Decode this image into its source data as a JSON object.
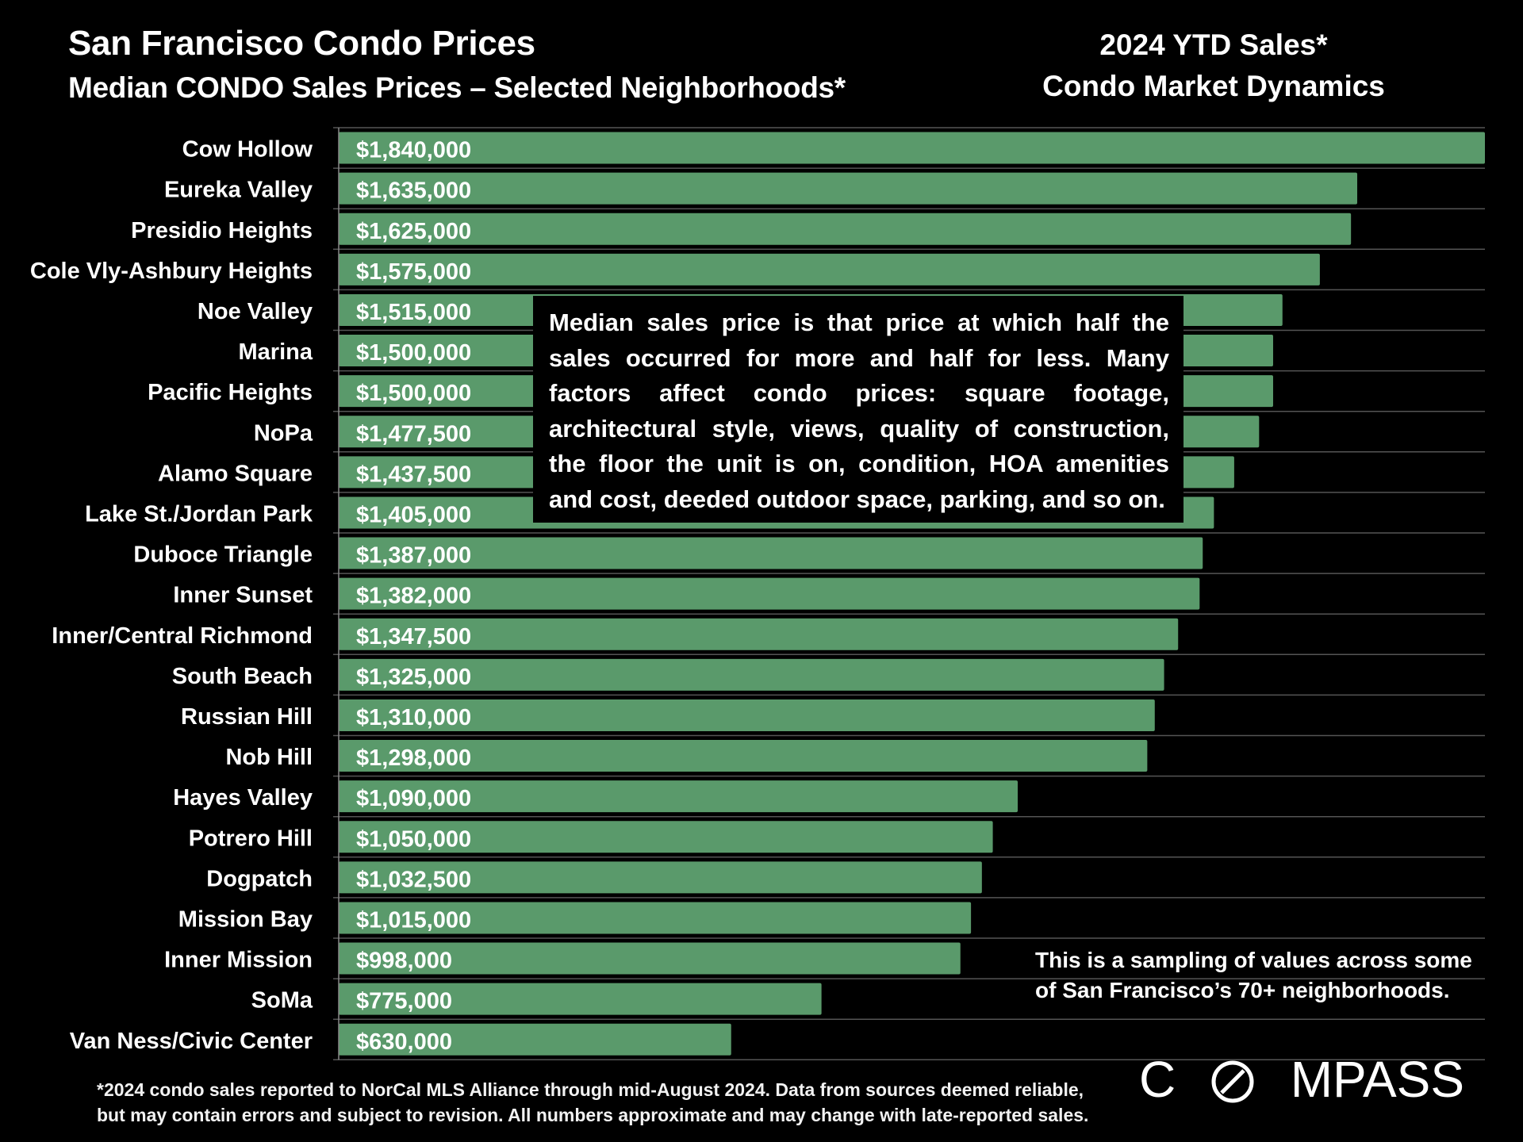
{
  "header": {
    "title": "San Francisco Condo Prices",
    "subtitle": "Median CONDO Sales Prices – Selected Neighborhoods*",
    "right_line1": "2024 YTD Sales*",
    "right_line2": "Condo Market Dynamics"
  },
  "annotation": "Median sales price is that price at which half the sales occurred for more and half for less. Many factors affect condo prices: square footage, architectural style, views, quality of construction, the floor the unit is on, condition, HOA amenities and cost, deeded outdoor space, parking, and so on.",
  "sampling_note": "This is a sampling of values across some of San Francisco’s 70+ neighborhoods.",
  "footnote_line1": "*2024 condo sales reported to NorCal MLS Alliance through mid-August 2024. Data from sources deemed reliable,",
  "footnote_line2": "but may contain errors and subject to revision. All numbers approximate and may change with late-reported sales.",
  "logo": {
    "before_o": "C",
    "after_o": "MPASS",
    "o_icon": "compass-o-icon"
  },
  "colors": {
    "bar": "#5a9a6b",
    "background": "#000000",
    "text": "#ffffff",
    "gridline": "#555555"
  },
  "chart_data": {
    "type": "bar",
    "orientation": "horizontal",
    "title": "San Francisco Condo Prices",
    "subtitle": "Median CONDO Sales Prices – Selected Neighborhoods*",
    "xlim": [
      0,
      1840000
    ],
    "categories": [
      "Cow Hollow",
      "Eureka Valley",
      "Presidio Heights",
      "Cole Vly-Ashbury Heights",
      "Noe Valley",
      "Marina",
      "Pacific Heights",
      "NoPa",
      "Alamo Square",
      "Lake St./Jordan Park",
      "Duboce Triangle",
      "Inner Sunset",
      "Inner/Central Richmond",
      "South Beach",
      "Russian Hill",
      "Nob Hill",
      "Hayes Valley",
      "Potrero Hill",
      "Dogpatch",
      "Mission Bay",
      "Inner Mission",
      "SoMa",
      "Van Ness/Civic Center"
    ],
    "values": [
      1840000,
      1635000,
      1625000,
      1575000,
      1515000,
      1500000,
      1500000,
      1477500,
      1437500,
      1405000,
      1387000,
      1382000,
      1347500,
      1325000,
      1310000,
      1298000,
      1090000,
      1050000,
      1032500,
      1015000,
      998000,
      775000,
      630000
    ],
    "labels": [
      "$1,840,000",
      "$1,635,000",
      "$1,625,000",
      "$1,575,000",
      "$1,515,000",
      "$1,500,000",
      "$1,500,000",
      "$1,477,500",
      "$1,437,500",
      "$1,405,000",
      "$1,387,000",
      "$1,382,000",
      "$1,347,500",
      "$1,325,000",
      "$1,310,000",
      "$1,298,000",
      "$1,090,000",
      "$1,050,000",
      "$1,032,500",
      "$1,015,000",
      "$998,000",
      "$775,000",
      "$630,000"
    ]
  }
}
